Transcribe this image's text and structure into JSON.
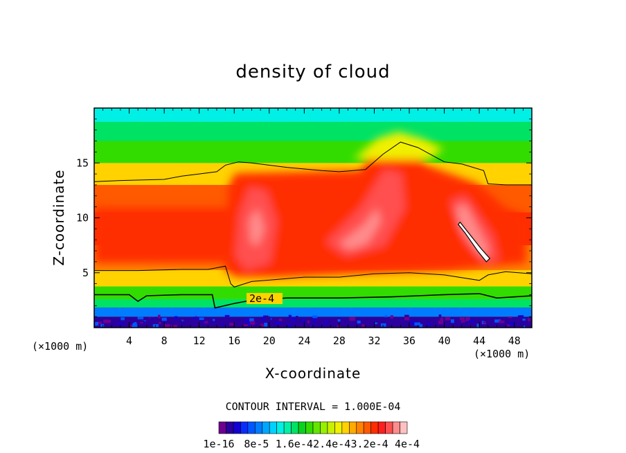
{
  "chart_data": {
    "type": "heatmap",
    "title": "density of cloud",
    "xlabel": "X-coordinate",
    "ylabel": "Z-coordinate",
    "x_unit": "(×1000 m)",
    "xlim": [
      0,
      50
    ],
    "ylim": [
      0,
      20
    ],
    "x_ticks": [
      4,
      8,
      12,
      16,
      20,
      24,
      28,
      32,
      36,
      40,
      44,
      48
    ],
    "y_ticks": [
      5,
      10,
      15
    ],
    "contour_interval_label": "CONTOUR INTERVAL = 1.000E-04",
    "contour_label": "2e-4",
    "colorbar_labels": [
      "1e-16",
      "8e-5",
      "1.6e-4",
      "2.4e-4",
      "3.2e-4",
      "4e-4"
    ],
    "colorbar_min": 0,
    "colorbar_max": 0.00042,
    "colors": [
      "#6e0090",
      "#2a009e",
      "#1400d0",
      "#0a2dff",
      "#0056ff",
      "#007cff",
      "#00a6ff",
      "#00d2ff",
      "#00f0e6",
      "#00f0a8",
      "#00e264",
      "#0ad21e",
      "#32dc00",
      "#64e600",
      "#96f000",
      "#c8f000",
      "#f0f000",
      "#ffd200",
      "#ffaa00",
      "#ff8200",
      "#ff5a00",
      "#ff2d00",
      "#ff1e1e",
      "#ff5050",
      "#ff8c8c",
      "#ffc0c0",
      "#ffffff"
    ],
    "field_samples": [
      {
        "z": 0.5,
        "value": 1e-05
      },
      {
        "z": 1.5,
        "value": 8e-05
      },
      {
        "z": 2.2,
        "value": 0.00016
      },
      {
        "z": 3.0,
        "value": 0.0002
      },
      {
        "z": 4.5,
        "value": 0.00028
      },
      {
        "z": 6.0,
        "value": 0.00032
      },
      {
        "z": 9.0,
        "value": 0.00036
      },
      {
        "z": 12.0,
        "value": 0.00034
      },
      {
        "z": 14.0,
        "value": 0.00028
      },
      {
        "z": 16.0,
        "value": 0.0002
      },
      {
        "z": 18.0,
        "value": 0.00016
      },
      {
        "z": 19.5,
        "value": 0.00014
      }
    ],
    "contour_lines": [
      {
        "name": "upper-contour",
        "x": [
          0,
          3,
          8,
          10,
          12,
          14,
          15,
          16.5,
          18,
          22,
          26,
          28,
          31,
          33,
          35,
          37,
          40,
          42,
          44.5,
          45,
          47,
          50
        ],
        "y": [
          13.3,
          13.4,
          13.5,
          13.8,
          14.0,
          14.2,
          14.8,
          15.1,
          15.0,
          14.6,
          14.3,
          14.2,
          14.4,
          15.8,
          16.9,
          16.4,
          15.1,
          14.9,
          14.3,
          13.1,
          13.0,
          13.0
        ]
      },
      {
        "name": "mid-contour",
        "x": [
          0,
          5,
          10,
          13,
          15,
          15.6,
          16,
          18,
          24,
          28,
          32,
          36,
          40,
          44,
          45,
          47,
          50
        ],
        "y": [
          5.2,
          5.2,
          5.3,
          5.3,
          5.6,
          4.0,
          3.7,
          4.2,
          4.6,
          4.6,
          4.9,
          5.0,
          4.8,
          4.3,
          4.8,
          5.1,
          4.9
        ]
      },
      {
        "name": "low-contour",
        "x": [
          0,
          4,
          5,
          6,
          10,
          13.5,
          13.8,
          16,
          18,
          22,
          28,
          34,
          40,
          44,
          46,
          50
        ],
        "y": [
          3.0,
          3.0,
          2.4,
          2.9,
          3.0,
          3.0,
          1.8,
          2.2,
          2.5,
          2.7,
          2.7,
          2.8,
          3.0,
          3.1,
          2.7,
          2.9
        ]
      },
      {
        "name": "white-band",
        "x": [
          41.8,
          43.0,
          44.2,
          45.2,
          44.8,
          43.8,
          42.4,
          41.6
        ],
        "y": [
          9.6,
          8.4,
          7.2,
          6.3,
          6.0,
          7.0,
          8.6,
          9.4
        ]
      }
    ]
  }
}
